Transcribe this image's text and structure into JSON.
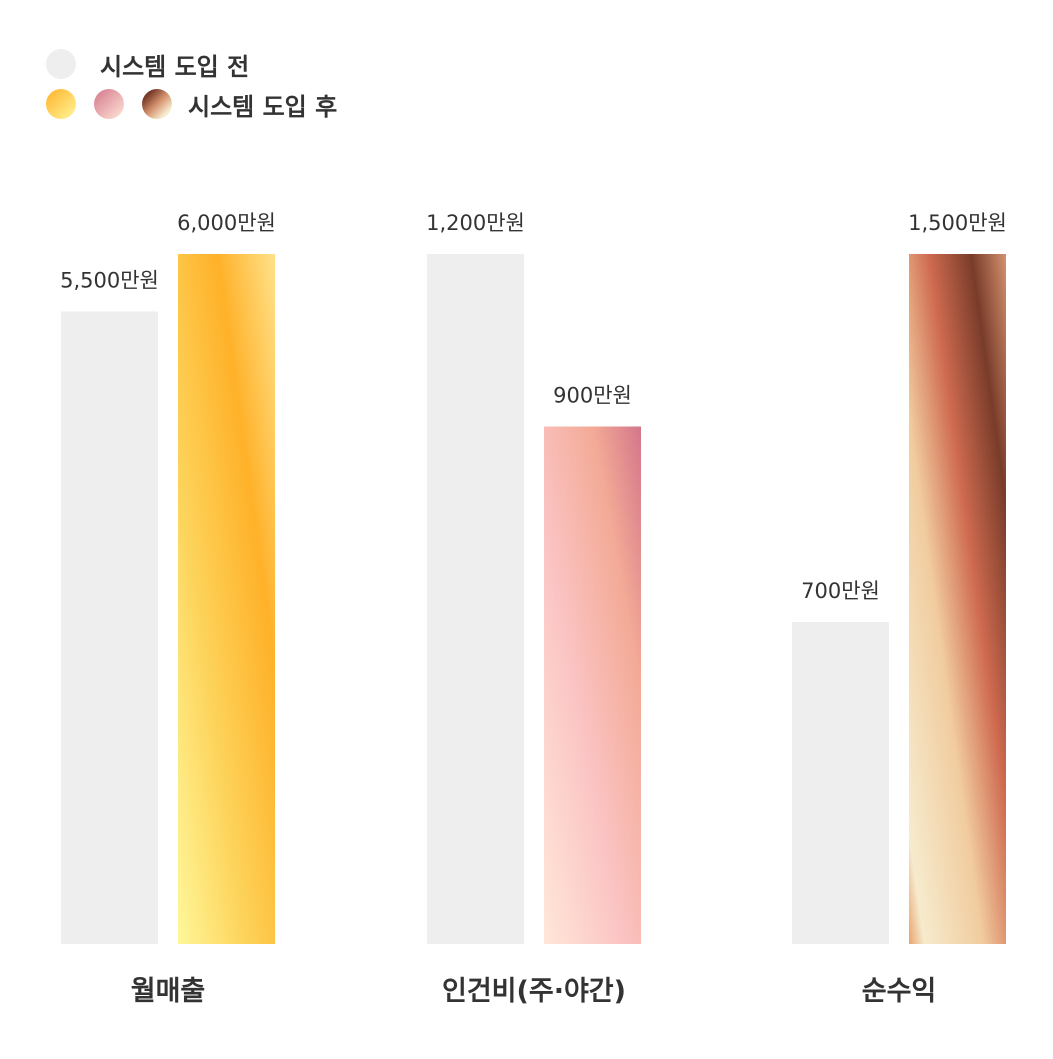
{
  "legend": {
    "before": "시스템 도입 전",
    "after": "시스템 도입 후"
  },
  "colors": {
    "before": "#eeeeee",
    "text": "#333333",
    "after_revenue": [
      "#fff79a",
      "#fdc64a",
      "#ffb129",
      "#ffe28a"
    ],
    "after_labor": [
      "#ffe7d9",
      "#fbc4c4",
      "#f3aa96",
      "#d4768a"
    ],
    "after_profit": [
      "#e8a36e",
      "#f6ebcd",
      "#f1cc9f",
      "#cf6b50",
      "#793c2a",
      "#d4916e"
    ]
  },
  "chart_data": {
    "type": "bar",
    "categories": [
      "월매출",
      "인건비(주·야간)",
      "순수익"
    ],
    "series": [
      {
        "name": "시스템 도입 전",
        "values": [
          5500,
          1200,
          700
        ]
      },
      {
        "name": "시스템 도입 후",
        "values": [
          6000,
          900,
          1500
        ]
      }
    ],
    "data_labels": [
      [
        "5,500만원",
        "1,200만원",
        "700만원"
      ],
      [
        "6,000만원",
        "900만원",
        "1,500만원"
      ]
    ],
    "unit": "만원",
    "groups_scale_max": [
      6000,
      1200,
      1500
    ],
    "legend_position": "top-left",
    "grid": false
  }
}
